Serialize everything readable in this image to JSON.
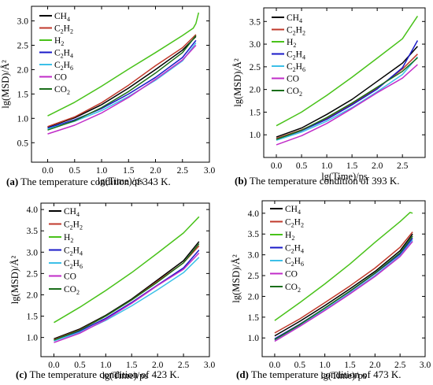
{
  "figure": {
    "series_names": [
      "CH4",
      "C2H2",
      "H2",
      "C2H4",
      "C2H6",
      "CO",
      "CO2"
    ],
    "series_colors": [
      "#000000",
      "#c0392b",
      "#49c21a",
      "#1a1ac8",
      "#3cc0e8",
      "#c02cc8",
      "#1a6e1a"
    ]
  },
  "chart_data": [
    {
      "type": "line",
      "caption_letter": "(a)",
      "caption_text": " The temperature condition of 343 K.",
      "xlabel": "lg(Time)/ps",
      "ylabel": "lg(MSD)/Å²",
      "xlim": [
        -0.3,
        3.0
      ],
      "ylim": [
        0.1,
        3.3
      ],
      "xticks": [
        0.0,
        0.5,
        1.0,
        1.5,
        2.0,
        2.5,
        3.0
      ],
      "yticks": [
        0.5,
        1.0,
        1.5,
        2.0,
        2.5,
        3.0
      ],
      "xtick_labels": [
        "0.0",
        "0.5",
        "1.0",
        "1.5",
        "2.0",
        "2.5",
        "3.0"
      ],
      "ytick_labels": [
        "0.5",
        "1.0",
        "1.5",
        "2.0",
        "2.5",
        "3.0"
      ],
      "legend": "top-left",
      "series": [
        {
          "name": "CH4",
          "x": [
            0,
            0.5,
            1.0,
            1.5,
            2.0,
            2.5,
            2.75
          ],
          "values": [
            0.82,
            1.01,
            1.28,
            1.62,
            2.0,
            2.4,
            2.68
          ]
        },
        {
          "name": "C2H2",
          "x": [
            0,
            0.5,
            1.0,
            1.5,
            2.0,
            2.5,
            2.75
          ],
          "values": [
            0.83,
            1.03,
            1.32,
            1.68,
            2.08,
            2.45,
            2.72
          ]
        },
        {
          "name": "H2",
          "x": [
            0,
            0.5,
            1.0,
            1.5,
            2.0,
            2.5,
            2.7,
            2.75,
            2.8
          ],
          "values": [
            1.05,
            1.33,
            1.66,
            2.01,
            2.35,
            2.7,
            2.85,
            2.95,
            3.17
          ]
        },
        {
          "name": "C2H4",
          "x": [
            0,
            0.5,
            1.0,
            1.5,
            2.0,
            2.5,
            2.75
          ],
          "values": [
            0.8,
            0.97,
            1.2,
            1.5,
            1.84,
            2.25,
            2.6
          ]
        },
        {
          "name": "C2H6",
          "x": [
            0,
            0.5,
            1.0,
            1.5,
            2.0,
            2.5,
            2.75
          ],
          "values": [
            0.78,
            0.94,
            1.16,
            1.45,
            1.78,
            2.18,
            2.55
          ]
        },
        {
          "name": "CO",
          "x": [
            0,
            0.5,
            1.0,
            1.5,
            2.0,
            2.5,
            2.75
          ],
          "values": [
            0.68,
            0.86,
            1.11,
            1.43,
            1.8,
            2.2,
            2.5
          ]
        },
        {
          "name": "CO2",
          "x": [
            0,
            0.5,
            1.0,
            1.5,
            2.0,
            2.5,
            2.75
          ],
          "values": [
            0.76,
            0.95,
            1.22,
            1.55,
            1.93,
            2.35,
            2.7
          ]
        }
      ]
    },
    {
      "type": "line",
      "caption_letter": "(b)",
      "caption_text": " The temperature condition of 393 K.",
      "xlabel": "lg(Time)/ps",
      "ylabel": "lg(MSD)/Å²",
      "xlim": [
        -0.25,
        2.95
      ],
      "ylim": [
        0.5,
        3.8
      ],
      "xticks": [
        0.0,
        0.5,
        1.0,
        1.5,
        2.0,
        2.5
      ],
      "yticks": [
        1.0,
        1.5,
        2.0,
        2.5,
        3.0,
        3.5
      ],
      "xtick_labels": [
        "0.0",
        "0.5",
        "1.0",
        "1.5",
        "2.0",
        "2.5"
      ],
      "ytick_labels": [
        "1.0",
        "1.5",
        "2.0",
        "2.5",
        "3.0",
        "3.5"
      ],
      "legend": "top-left",
      "series": [
        {
          "name": "CH4",
          "x": [
            0,
            0.5,
            1.0,
            1.5,
            2.0,
            2.5,
            2.8
          ],
          "values": [
            0.95,
            1.15,
            1.45,
            1.78,
            2.18,
            2.58,
            2.95
          ]
        },
        {
          "name": "C2H2",
          "x": [
            0,
            0.5,
            1.0,
            1.5,
            2.0,
            2.5,
            2.8
          ],
          "values": [
            0.92,
            1.11,
            1.36,
            1.68,
            2.03,
            2.45,
            2.78
          ]
        },
        {
          "name": "H2",
          "x": [
            0,
            0.5,
            1.0,
            1.5,
            2.0,
            2.5,
            2.8
          ],
          "values": [
            1.2,
            1.5,
            1.87,
            2.27,
            2.69,
            3.12,
            3.62
          ]
        },
        {
          "name": "C2H4",
          "x": [
            0,
            0.5,
            1.0,
            1.5,
            2.0,
            2.5,
            2.8
          ],
          "values": [
            0.9,
            1.09,
            1.34,
            1.66,
            2.01,
            2.48,
            3.08
          ]
        },
        {
          "name": "C2H6",
          "x": [
            0,
            0.5,
            1.0,
            1.5,
            2.0,
            2.5,
            2.8
          ],
          "values": [
            0.88,
            1.06,
            1.3,
            1.6,
            1.95,
            2.33,
            2.72
          ]
        },
        {
          "name": "CO",
          "x": [
            0,
            0.5,
            1.0,
            1.5,
            2.0,
            2.5,
            2.8
          ],
          "values": [
            0.78,
            0.98,
            1.25,
            1.58,
            1.93,
            2.25,
            2.55
          ]
        },
        {
          "name": "CO2",
          "x": [
            0,
            0.5,
            1.0,
            1.5,
            2.0,
            2.5,
            2.8
          ],
          "values": [
            0.9,
            1.1,
            1.38,
            1.7,
            2.05,
            2.4,
            2.7
          ]
        }
      ]
    },
    {
      "type": "line",
      "caption_letter": "(c)",
      "caption_text": " The temperature condition of 423 K.",
      "xlabel": "lg(Time)/ps",
      "ylabel": "lg(MSD)/Å²",
      "xlim": [
        -0.25,
        3.0
      ],
      "ylim": [
        0.55,
        4.15
      ],
      "xticks": [
        0.0,
        0.5,
        1.0,
        1.5,
        2.0,
        2.5,
        3.0
      ],
      "yticks": [
        1.0,
        1.5,
        2.0,
        2.5,
        3.0,
        3.5,
        4.0
      ],
      "xtick_labels": [
        "0.0",
        "0.5",
        "1.0",
        "1.5",
        "2.0",
        "2.5",
        "3.0"
      ],
      "ytick_labels": [
        "1.0",
        "1.5",
        "2.0",
        "2.5",
        "3.0",
        "3.5",
        "4.0"
      ],
      "legend": "top-left",
      "series": [
        {
          "name": "CH4",
          "x": [
            0,
            0.5,
            1.0,
            1.5,
            2.0,
            2.5,
            2.8
          ],
          "values": [
            0.97,
            1.2,
            1.52,
            1.9,
            2.35,
            2.8,
            3.25
          ]
        },
        {
          "name": "C2H2",
          "x": [
            0,
            0.5,
            1.0,
            1.5,
            2.0,
            2.5,
            2.8
          ],
          "values": [
            0.95,
            1.18,
            1.5,
            1.88,
            2.32,
            2.75,
            3.15
          ]
        },
        {
          "name": "H2",
          "x": [
            0,
            0.5,
            1.0,
            1.5,
            2.0,
            2.5,
            2.8
          ],
          "values": [
            1.35,
            1.71,
            2.1,
            2.52,
            2.98,
            3.45,
            3.83
          ]
        },
        {
          "name": "C2H4",
          "x": [
            0,
            0.5,
            1.0,
            1.5,
            2.0,
            2.5,
            2.8
          ],
          "values": [
            0.93,
            1.15,
            1.45,
            1.82,
            2.23,
            2.63,
            3.05
          ]
        },
        {
          "name": "C2H6",
          "x": [
            0,
            0.5,
            1.0,
            1.5,
            2.0,
            2.5,
            2.8
          ],
          "values": [
            0.92,
            1.12,
            1.4,
            1.74,
            2.12,
            2.52,
            2.88
          ]
        },
        {
          "name": "CO",
          "x": [
            0,
            0.5,
            1.0,
            1.5,
            2.0,
            2.5,
            2.8
          ],
          "values": [
            0.88,
            1.1,
            1.42,
            1.8,
            2.22,
            2.6,
            2.98
          ]
        },
        {
          "name": "CO2",
          "x": [
            0,
            0.5,
            1.0,
            1.5,
            2.0,
            2.5,
            2.8
          ],
          "values": [
            0.94,
            1.17,
            1.5,
            1.88,
            2.3,
            2.75,
            3.2
          ]
        }
      ]
    },
    {
      "type": "line",
      "caption_letter": "(d)",
      "caption_text": " The temperature condition of 473 K.",
      "xlabel": "lg(Time)/ps",
      "ylabel": "lg(MSD)/Å²",
      "xlim": [
        -0.25,
        3.0
      ],
      "ylim": [
        0.55,
        4.3
      ],
      "xticks": [
        0.0,
        0.5,
        1.0,
        1.5,
        2.0,
        2.5,
        3.0
      ],
      "yticks": [
        1.0,
        1.5,
        2.0,
        2.5,
        3.0,
        3.5,
        4.0
      ],
      "xtick_labels": [
        "0.0",
        "0.5",
        "1.0",
        "1.5",
        "2.0",
        "2.5",
        "3.0"
      ],
      "ytick_labels": [
        "1.0",
        "1.5",
        "2.0",
        "2.5",
        "3.0",
        "3.5",
        "4.0"
      ],
      "legend": "top-left",
      "series": [
        {
          "name": "CH4",
          "x": [
            0,
            0.5,
            1.0,
            1.5,
            2.0,
            2.5,
            2.75
          ],
          "values": [
            1.05,
            1.4,
            1.78,
            2.18,
            2.6,
            3.1,
            3.5
          ]
        },
        {
          "name": "C2H2",
          "x": [
            0,
            0.5,
            1.0,
            1.5,
            2.0,
            2.5,
            2.75
          ],
          "values": [
            1.12,
            1.46,
            1.85,
            2.25,
            2.68,
            3.18,
            3.55
          ]
        },
        {
          "name": "H2",
          "x": [
            0,
            0.5,
            1.0,
            1.5,
            2.0,
            2.5,
            2.7,
            2.75
          ],
          "values": [
            1.42,
            1.85,
            2.3,
            2.78,
            3.3,
            3.8,
            4.02,
            4.0
          ]
        },
        {
          "name": "C2H4",
          "x": [
            0,
            0.5,
            1.0,
            1.5,
            2.0,
            2.5,
            2.75
          ],
          "values": [
            0.98,
            1.33,
            1.72,
            2.12,
            2.55,
            3.02,
            3.4
          ]
        },
        {
          "name": "C2H6",
          "x": [
            0,
            0.5,
            1.0,
            1.5,
            2.0,
            2.5,
            2.75
          ],
          "values": [
            0.95,
            1.3,
            1.68,
            2.08,
            2.5,
            2.98,
            3.35
          ]
        },
        {
          "name": "CO",
          "x": [
            0,
            0.5,
            1.0,
            1.5,
            2.0,
            2.5,
            2.75
          ],
          "values": [
            0.92,
            1.28,
            1.66,
            2.06,
            2.48,
            2.96,
            3.32
          ]
        },
        {
          "name": "CO2",
          "x": [
            0,
            0.5,
            1.0,
            1.5,
            2.0,
            2.5,
            2.75
          ],
          "values": [
            0.96,
            1.32,
            1.72,
            2.13,
            2.56,
            3.05,
            3.45
          ]
        }
      ]
    }
  ]
}
